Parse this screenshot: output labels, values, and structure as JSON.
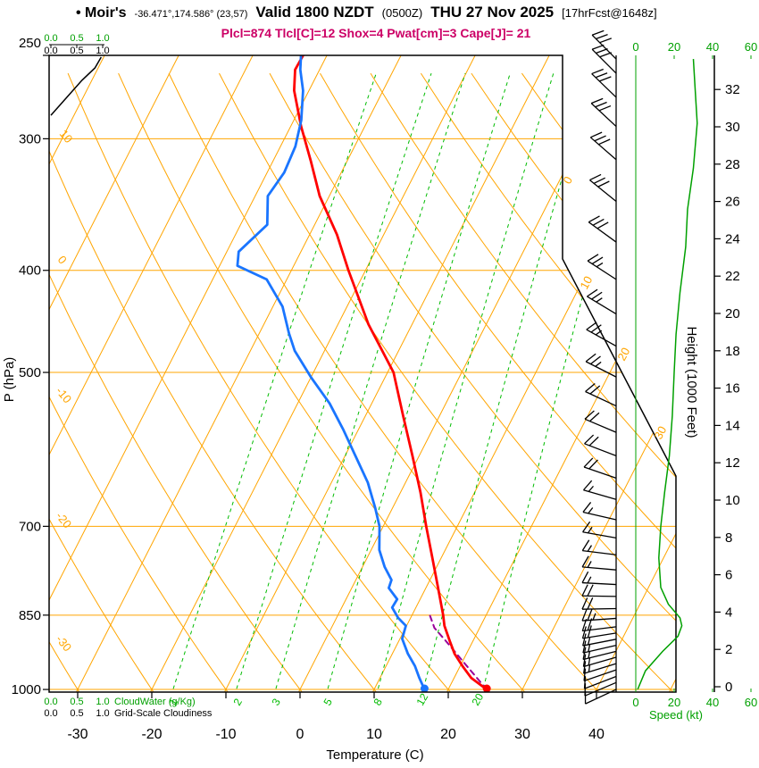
{
  "header": {
    "station": "• Moir's",
    "coords": "-36.471°,174.586° (23,57)",
    "valid_time": "Valid 1800 NZDT",
    "valid_utc": "(0500Z)",
    "valid_date": "THU 27 Nov 2025",
    "forecast": "[17hrFcst@1648z]",
    "indices": "Plcl=874 Tlcl[C]=12 Shox=4 Pwat[cm]=3 Cape[J]= 21",
    "indices_color": "#cc0066"
  },
  "axes": {
    "pressure": {
      "label": "P (hPa)",
      "ticks": [
        250,
        300,
        400,
        500,
        700,
        850,
        1000
      ]
    },
    "temperature": {
      "label": "Temperature (C)",
      "ticks": [
        -30,
        -20,
        -10,
        0,
        10,
        20,
        30,
        40
      ]
    },
    "height": {
      "label": "Height (1000 Feet)",
      "ticks": [
        0,
        2,
        4,
        6,
        8,
        10,
        12,
        14,
        16,
        18,
        20,
        22,
        24,
        26,
        28,
        30,
        32
      ]
    },
    "speed": {
      "label": "Speed (kt)",
      "ticks": [
        0,
        20,
        40,
        60
      ],
      "color": "#00a000"
    },
    "cloudwater": {
      "label": "CloudWater (g/Kg)",
      "ticks": [
        "0.0",
        "0.5",
        "1.0"
      ]
    },
    "cloudiness": {
      "label": "Grid-Scale Cloudiness",
      "ticks": [
        "0.0",
        "0.5",
        "1.0"
      ]
    }
  },
  "chart_data": {
    "type": "line",
    "title": "Skew-T log-P atmospheric sounding",
    "pressure_range_hpa": [
      250,
      1000
    ],
    "surface": {
      "pressure": 1000,
      "temperature": 25.2,
      "dewpoint": 16.8
    },
    "series": [
      {
        "name": "temperature",
        "color": "#ff0000",
        "points": [
          [
            1000,
            25.2
          ],
          [
            975,
            22.3
          ],
          [
            950,
            20.3
          ],
          [
            925,
            18.4
          ],
          [
            900,
            16.9
          ],
          [
            870,
            15.1
          ],
          [
            850,
            14.2
          ],
          [
            800,
            11.6
          ],
          [
            750,
            8.8
          ],
          [
            700,
            5.8
          ],
          [
            650,
            2.7
          ],
          [
            600,
            -0.9
          ],
          [
            550,
            -4.9
          ],
          [
            500,
            -9.2
          ],
          [
            450,
            -15.9
          ],
          [
            400,
            -22.3
          ],
          [
            370,
            -26.3
          ],
          [
            340,
            -31.3
          ],
          [
            315,
            -34.9
          ],
          [
            292,
            -38.6
          ],
          [
            270,
            -42.0
          ],
          [
            258,
            -43.3
          ],
          [
            250,
            -43.2
          ]
        ]
      },
      {
        "name": "dewpoint",
        "color": "#1a75ff",
        "points": [
          [
            1000,
            16.8
          ],
          [
            975,
            15.3
          ],
          [
            950,
            13.9
          ],
          [
            925,
            12.1
          ],
          [
            895,
            10.3
          ],
          [
            870,
            9.9
          ],
          [
            855,
            8.3
          ],
          [
            836,
            6.8
          ],
          [
            821,
            6.9
          ],
          [
            801,
            5.0
          ],
          [
            787,
            4.8
          ],
          [
            765,
            3.0
          ],
          [
            737,
            1.1
          ],
          [
            700,
            -0.5
          ],
          [
            673,
            -2.3
          ],
          [
            636,
            -5.1
          ],
          [
            600,
            -8.6
          ],
          [
            567,
            -12.0
          ],
          [
            535,
            -15.7
          ],
          [
            506,
            -19.9
          ],
          [
            477,
            -24.0
          ],
          [
            459,
            -26.0
          ],
          [
            433,
            -28.7
          ],
          [
            408,
            -32.7
          ],
          [
            396,
            -37.6
          ],
          [
            384,
            -38.4
          ],
          [
            362,
            -36.4
          ],
          [
            340,
            -38.3
          ],
          [
            323,
            -37.7
          ],
          [
            305,
            -38.0
          ],
          [
            288,
            -39.0
          ],
          [
            270,
            -40.8
          ],
          [
            258,
            -42.6
          ],
          [
            250,
            -43.5
          ]
        ]
      },
      {
        "name": "parcel",
        "color": "#990099",
        "style": "dashed",
        "points": [
          [
            1000,
            25.2
          ],
          [
            950,
            20.9
          ],
          [
            900,
            16.4
          ],
          [
            874,
            13.9
          ],
          [
            850,
            12.4
          ]
        ]
      },
      {
        "name": "wind_speed",
        "color": "#00a000",
        "points": [
          [
            252,
            30
          ],
          [
            270,
            31
          ],
          [
            290,
            32
          ],
          [
            320,
            30
          ],
          [
            350,
            27
          ],
          [
            380,
            26
          ],
          [
            420,
            23
          ],
          [
            460,
            21
          ],
          [
            500,
            20
          ],
          [
            550,
            19
          ],
          [
            600,
            17.5
          ],
          [
            650,
            15
          ],
          [
            700,
            13
          ],
          [
            750,
            12
          ],
          [
            800,
            13
          ],
          [
            830,
            17
          ],
          [
            855,
            23
          ],
          [
            870,
            24
          ],
          [
            890,
            22
          ],
          [
            920,
            14
          ],
          [
            960,
            5
          ],
          [
            1000,
            1
          ]
        ]
      },
      {
        "name": "cloudiness",
        "color": "#000000",
        "points": [
          [
            285,
            0
          ],
          [
            276,
            0.25
          ],
          [
            264,
            0.6
          ],
          [
            257,
            0.85
          ],
          [
            251,
            0.97
          ]
        ]
      }
    ],
    "wind_barbs": [
      [
        1000,
        245,
        10
      ],
      [
        985,
        247,
        10
      ],
      [
        972,
        249,
        12
      ],
      [
        958,
        251,
        12
      ],
      [
        945,
        253,
        14
      ],
      [
        932,
        254,
        15
      ],
      [
        920,
        256,
        15
      ],
      [
        908,
        257,
        15
      ],
      [
        896,
        259,
        15
      ],
      [
        884,
        261,
        18
      ],
      [
        872,
        263,
        22
      ],
      [
        856,
        266,
        24
      ],
      [
        838,
        269,
        22
      ],
      [
        816,
        271,
        19
      ],
      [
        795,
        273,
        16
      ],
      [
        770,
        275,
        14
      ],
      [
        745,
        277,
        13
      ],
      [
        718,
        280,
        14
      ],
      [
        690,
        283,
        15
      ],
      [
        660,
        286,
        16
      ],
      [
        630,
        289,
        18
      ],
      [
        600,
        291,
        19
      ],
      [
        570,
        293,
        20
      ],
      [
        538,
        295,
        21
      ],
      [
        505,
        297,
        23
      ],
      [
        472,
        299,
        25
      ],
      [
        440,
        301,
        26
      ],
      [
        408,
        303,
        27
      ],
      [
        376,
        306,
        28
      ],
      [
        344,
        309,
        29
      ],
      [
        314,
        311,
        30
      ],
      [
        292,
        313,
        31
      ],
      [
        274,
        314,
        31
      ],
      [
        260,
        315,
        30
      ],
      [
        252,
        315,
        30
      ]
    ],
    "background": {
      "pressure_lines": [
        300,
        400,
        500,
        700,
        850,
        1000
      ],
      "isotherm_step_c": 10,
      "dry_adiabat_labels": [
        "10",
        "0",
        "-10",
        "-20",
        "-30"
      ],
      "isotherm_labels": [
        "0",
        "10",
        "20",
        "30"
      ],
      "mixing_ratio_lines": [
        1,
        2,
        3,
        5,
        8,
        12,
        20
      ],
      "colors": {
        "isotherm": "#ffa500",
        "mixing": "#00bb00"
      }
    }
  }
}
